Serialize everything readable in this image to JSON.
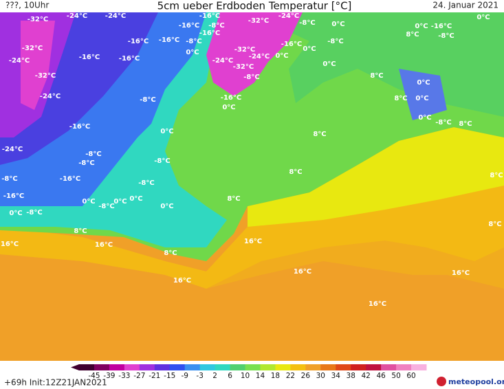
{
  "header": {
    "left": "???, 10Uhr",
    "title": "5cm ueber Erdboden Temperatur [°C]",
    "date": "24. Januar 2021"
  },
  "labels": [
    "-32°C",
    "-24°C",
    "-24°C",
    "-16°C",
    "-16°C",
    "-8°C",
    "-16°C",
    "-8°C",
    "-32°C",
    "-24°C",
    "-8°C",
    "0°C",
    "0°C",
    "0°C",
    "-16°C",
    "-8°C",
    "8°C",
    "-32°C",
    "-16°C",
    "-16°C",
    "0°C",
    "-32°C",
    "-24°C",
    "-16°C",
    "0°C",
    "-8°C",
    "0°C",
    "-24°C",
    "-16°C",
    "-16°C",
    "-24°C",
    "-32°C",
    "0°C",
    "-32°C",
    "-8°C",
    "8°C",
    "0°C",
    "-24°C",
    "-16°C",
    "0°C",
    "-8°C",
    "8°C",
    "0°C",
    "0°C",
    "-8°C",
    "8°C",
    "-16°C",
    "0°C",
    "8°C",
    "-24°C",
    "-8°C",
    "-8°C",
    "-8°C",
    "8°C",
    "-8°C",
    "-16°C",
    "-8°C",
    "8°C",
    "-16°C",
    "8°C",
    "0°C",
    "-8°C",
    "0°C",
    "0°C",
    "0°C",
    "0°C",
    "-8°C",
    "8°C",
    "8°C",
    "16°C",
    "16°C",
    "16°C",
    "8°C",
    "16°C",
    "16°C",
    "16°C",
    "16°C"
  ],
  "colorbar": {
    "ticks": [
      -45,
      -39,
      -33,
      -27,
      -21,
      -15,
      -9,
      -3,
      2,
      6,
      10,
      14,
      18,
      22,
      26,
      30,
      34,
      38,
      42,
      46,
      50,
      60
    ]
  },
  "footer": {
    "run": "+69h Init:12Z21JAN2021",
    "logo": "meteopool.org"
  }
}
